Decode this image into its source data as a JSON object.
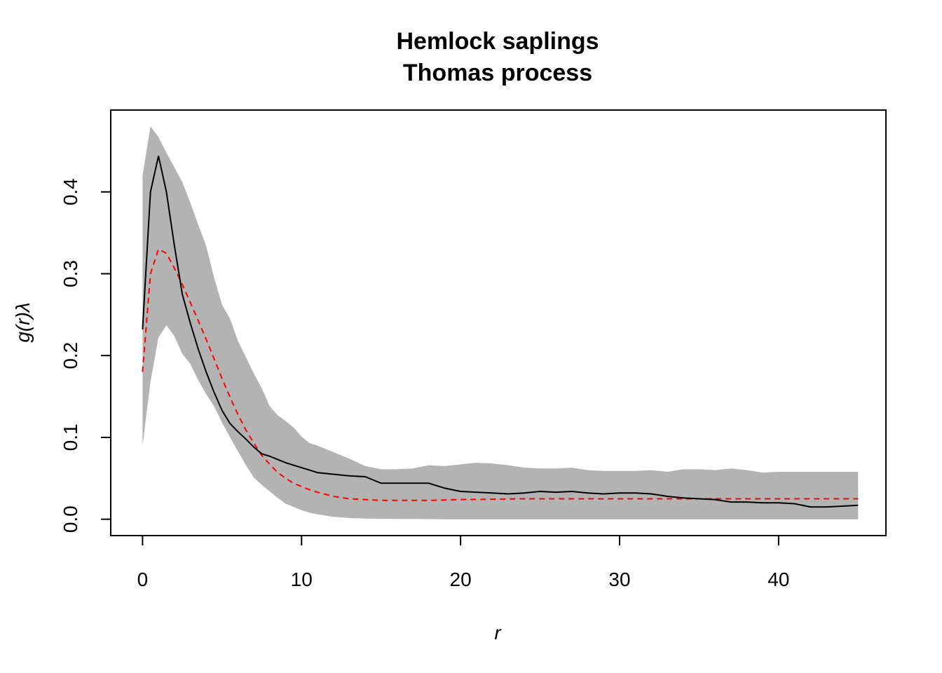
{
  "chart_data": {
    "type": "line",
    "title": "Hemlock saplings",
    "subtitle": "Thomas process",
    "xlabel": "r",
    "ylabel": "g(r)λ",
    "xlim": [
      -2,
      46.75
    ],
    "ylim": [
      -0.02,
      0.5
    ],
    "x_ticks": [
      0,
      10,
      20,
      30,
      40
    ],
    "y_ticks": [
      0.0,
      0.1,
      0.2,
      0.3,
      0.4
    ],
    "x_tick_labels": [
      "0",
      "10",
      "20",
      "30",
      "40"
    ],
    "y_tick_labels": [
      "0.0",
      "0.1",
      "0.2",
      "0.3",
      "0.4"
    ],
    "grid": false,
    "legend": "none",
    "colors": {
      "envelope": "#b3b3b3",
      "observed": "#000000",
      "fitted": "#ff0000"
    },
    "x": [
      0,
      0.5,
      1,
      1.5,
      2,
      2.5,
      3,
      3.5,
      4,
      4.5,
      5,
      5.5,
      6,
      6.5,
      7,
      7.5,
      8,
      8.5,
      9,
      9.5,
      10,
      10.5,
      11,
      12,
      13,
      14,
      15,
      16,
      17,
      18,
      19,
      20,
      21,
      22,
      23,
      24,
      25,
      26,
      27,
      28,
      29,
      30,
      31,
      32,
      33,
      34,
      35,
      36,
      37,
      38,
      39,
      40,
      41,
      42,
      43,
      44,
      45
    ],
    "series": [
      {
        "role": "envelope-upper",
        "values": [
          0.42,
          0.48,
          0.467,
          0.448,
          0.43,
          0.412,
          0.387,
          0.36,
          0.334,
          0.295,
          0.262,
          0.245,
          0.218,
          0.198,
          0.178,
          0.16,
          0.138,
          0.127,
          0.12,
          0.112,
          0.101,
          0.093,
          0.09,
          0.082,
          0.074,
          0.065,
          0.061,
          0.061,
          0.062,
          0.066,
          0.065,
          0.067,
          0.069,
          0.068,
          0.066,
          0.063,
          0.062,
          0.062,
          0.063,
          0.06,
          0.059,
          0.059,
          0.059,
          0.06,
          0.058,
          0.061,
          0.061,
          0.06,
          0.062,
          0.06,
          0.057,
          0.058,
          0.058,
          0.058,
          0.058,
          0.058,
          0.058
        ]
      },
      {
        "role": "envelope-lower",
        "values": [
          0.09,
          0.168,
          0.222,
          0.237,
          0.224,
          0.202,
          0.19,
          0.17,
          0.153,
          0.138,
          0.118,
          0.1,
          0.083,
          0.066,
          0.051,
          0.042,
          0.034,
          0.026,
          0.019,
          0.015,
          0.011,
          0.008,
          0.006,
          0.003,
          0.0015,
          0.0008,
          0.0005,
          0.0003,
          0.0002,
          0.0001,
          0,
          0,
          0,
          0,
          0,
          0,
          0,
          0,
          0,
          0,
          0,
          0,
          0,
          0,
          0,
          0,
          0,
          0,
          0,
          0,
          0,
          0,
          0,
          0,
          0,
          0,
          0
        ]
      },
      {
        "role": "observed",
        "style": "solid",
        "values": [
          0.232,
          0.4,
          0.444,
          0.4,
          0.335,
          0.275,
          0.24,
          0.208,
          0.18,
          0.155,
          0.133,
          0.117,
          0.107,
          0.098,
          0.088,
          0.08,
          0.077,
          0.073,
          0.069,
          0.066,
          0.063,
          0.06,
          0.057,
          0.055,
          0.053,
          0.052,
          0.044,
          0.044,
          0.044,
          0.044,
          0.038,
          0.034,
          0.033,
          0.032,
          0.031,
          0.032,
          0.034,
          0.033,
          0.034,
          0.032,
          0.031,
          0.032,
          0.032,
          0.031,
          0.028,
          0.026,
          0.025,
          0.024,
          0.021,
          0.021,
          0.02,
          0.02,
          0.019,
          0.015,
          0.015,
          0.016,
          0.017
        ]
      },
      {
        "role": "fitted",
        "style": "dashed",
        "values": [
          0.18,
          0.3,
          0.33,
          0.325,
          0.307,
          0.287,
          0.265,
          0.243,
          0.22,
          0.196,
          0.172,
          0.149,
          0.128,
          0.109,
          0.093,
          0.078,
          0.067,
          0.057,
          0.05,
          0.044,
          0.04,
          0.036,
          0.033,
          0.028,
          0.025,
          0.024,
          0.023,
          0.023,
          0.023,
          0.023,
          0.0235,
          0.024,
          0.0242,
          0.0245,
          0.0247,
          0.025,
          0.025,
          0.025,
          0.025,
          0.025,
          0.025,
          0.025,
          0.025,
          0.025,
          0.025,
          0.025,
          0.025,
          0.025,
          0.025,
          0.025,
          0.025,
          0.025,
          0.025,
          0.025,
          0.025,
          0.025,
          0.025
        ]
      }
    ]
  }
}
